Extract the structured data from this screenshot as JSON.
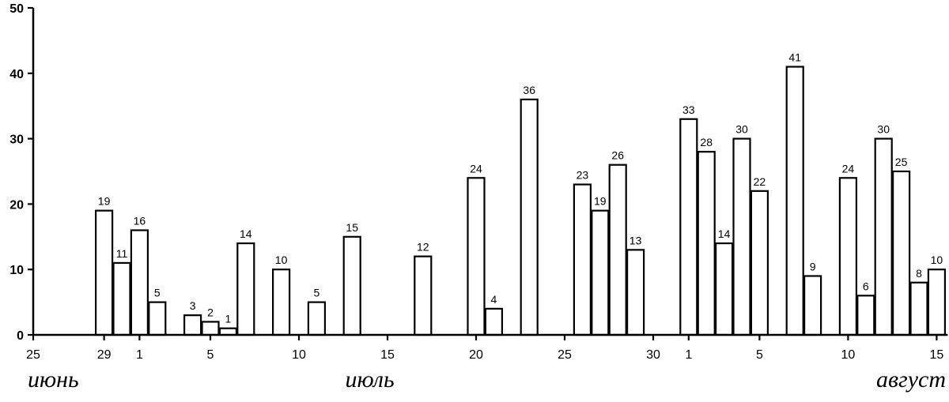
{
  "chart_data": {
    "type": "bar",
    "title": "",
    "xlabel": "",
    "ylabel": "",
    "ylim": [
      0,
      50
    ],
    "yticks": [
      0,
      10,
      20,
      30,
      40,
      50
    ],
    "xticks": [
      {
        "label": "25",
        "day": 0
      },
      {
        "label": "29",
        "day": 4
      },
      {
        "label": "1",
        "day": 6
      },
      {
        "label": "5",
        "day": 10
      },
      {
        "label": "10",
        "day": 15
      },
      {
        "label": "15",
        "day": 20
      },
      {
        "label": "20",
        "day": 25
      },
      {
        "label": "25",
        "day": 30
      },
      {
        "label": "30",
        "day": 35
      },
      {
        "label": "1",
        "day": 37
      },
      {
        "label": "5",
        "day": 41
      },
      {
        "label": "10",
        "day": 46
      },
      {
        "label": "15",
        "day": 51
      }
    ],
    "months": [
      {
        "label": "июнь",
        "day": 2
      },
      {
        "label": "июль",
        "day": 19
      },
      {
        "label": "август",
        "day": 49
      }
    ],
    "bars": [
      {
        "day": 4,
        "value": 19
      },
      {
        "day": 5,
        "value": 11
      },
      {
        "day": 6,
        "value": 16
      },
      {
        "day": 7,
        "value": 5
      },
      {
        "day": 9,
        "value": 3
      },
      {
        "day": 10,
        "value": 2
      },
      {
        "day": 11,
        "value": 1
      },
      {
        "day": 12,
        "value": 14
      },
      {
        "day": 14,
        "value": 10
      },
      {
        "day": 16,
        "value": 5
      },
      {
        "day": 18,
        "value": 15
      },
      {
        "day": 22,
        "value": 12
      },
      {
        "day": 25,
        "value": 24
      },
      {
        "day": 26,
        "value": 4
      },
      {
        "day": 28,
        "value": 36
      },
      {
        "day": 31,
        "value": 23
      },
      {
        "day": 32,
        "value": 19
      },
      {
        "day": 33,
        "value": 26
      },
      {
        "day": 34,
        "value": 13
      },
      {
        "day": 37,
        "value": 33
      },
      {
        "day": 38,
        "value": 28
      },
      {
        "day": 39,
        "value": 14
      },
      {
        "day": 40,
        "value": 30
      },
      {
        "day": 41,
        "value": 22
      },
      {
        "day": 43,
        "value": 41
      },
      {
        "day": 44,
        "value": 9
      },
      {
        "day": 46,
        "value": 24
      },
      {
        "day": 47,
        "value": 6
      },
      {
        "day": 48,
        "value": 30
      },
      {
        "day": 49,
        "value": 25
      },
      {
        "day": 50,
        "value": 8
      },
      {
        "day": 51,
        "value": 10
      }
    ],
    "grid": false,
    "legend": "none"
  }
}
